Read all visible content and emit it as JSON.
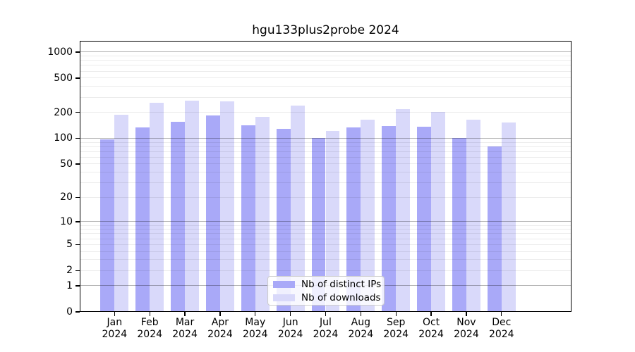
{
  "title": "hgu133plus2probe 2024",
  "colors": {
    "ips": "#a9a9f8",
    "downloads": "#d9d9fa",
    "grid_major": "#b5b5b5",
    "grid_minor": "#ececec",
    "axis": "#000000",
    "legend_border": "#cccccc"
  },
  "legend": {
    "items": [
      {
        "label": "Nb of distinct IPs",
        "color_key": "ips"
      },
      {
        "label": "Nb of downloads",
        "color_key": "downloads"
      }
    ]
  },
  "chart_data": {
    "type": "bar",
    "title": "hgu133plus2probe 2024",
    "categories": [
      "Jan 2024",
      "Feb 2024",
      "Mar 2024",
      "Apr 2024",
      "May 2024",
      "Jun 2024",
      "Jul 2024",
      "Aug 2024",
      "Sep 2024",
      "Oct 2024",
      "Nov 2024",
      "Dec 2024"
    ],
    "series": [
      {
        "name": "Nb of distinct IPs",
        "values": [
          97,
          134,
          155,
          184,
          142,
          128,
          100,
          135,
          140,
          137,
          101,
          80
        ]
      },
      {
        "name": "Nb of downloads",
        "values": [
          187,
          260,
          275,
          269,
          176,
          240,
          122,
          165,
          218,
          203,
          165,
          153
        ]
      }
    ],
    "xlabel": "",
    "ylabel": "",
    "yscale": "log1p",
    "y_ticks": [
      0,
      1,
      2,
      5,
      10,
      20,
      50,
      100,
      200,
      500,
      1000
    ],
    "ylim": [
      0,
      1350
    ],
    "grid": "horizontal",
    "legend_position": "lower center"
  }
}
